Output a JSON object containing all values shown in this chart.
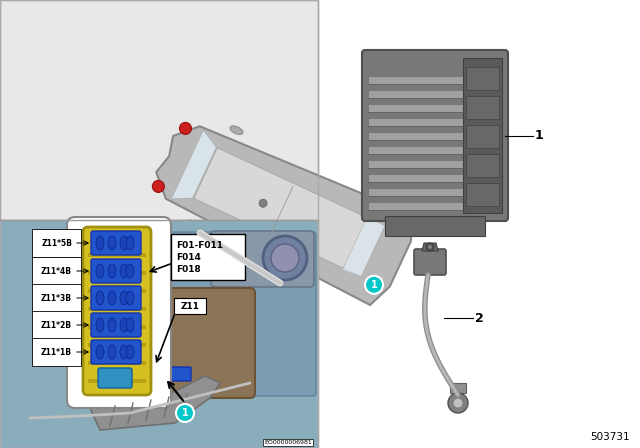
{
  "bg_color": "#ffffff",
  "diagram_number": "503731",
  "eco_number": "EO0000006981",
  "callout_1_color": "#00c8c8",
  "connector_labels": [
    "Z11*5B",
    "Z11*4B",
    "Z11*3B",
    "Z11*2B",
    "Z11*1B"
  ],
  "fuse_labels": [
    "F01-F011",
    "F014",
    "F018"
  ],
  "z11_label": "Z11",
  "part_numbers": [
    "1",
    "2"
  ],
  "top_panel_bg": "#e8e8e8",
  "bottom_panel_bg": "#8aadbc",
  "panel_border": "#aaaaaa",
  "car_body_color": "#b8b8b8",
  "car_roof_color": "#d8d8d8",
  "car_glass_color": "#dce8f0",
  "car_taillight_color": "#cc2020",
  "yellow_module": "#d4c020",
  "blue_connector": "#2255cc",
  "right_bg": "#ffffff"
}
